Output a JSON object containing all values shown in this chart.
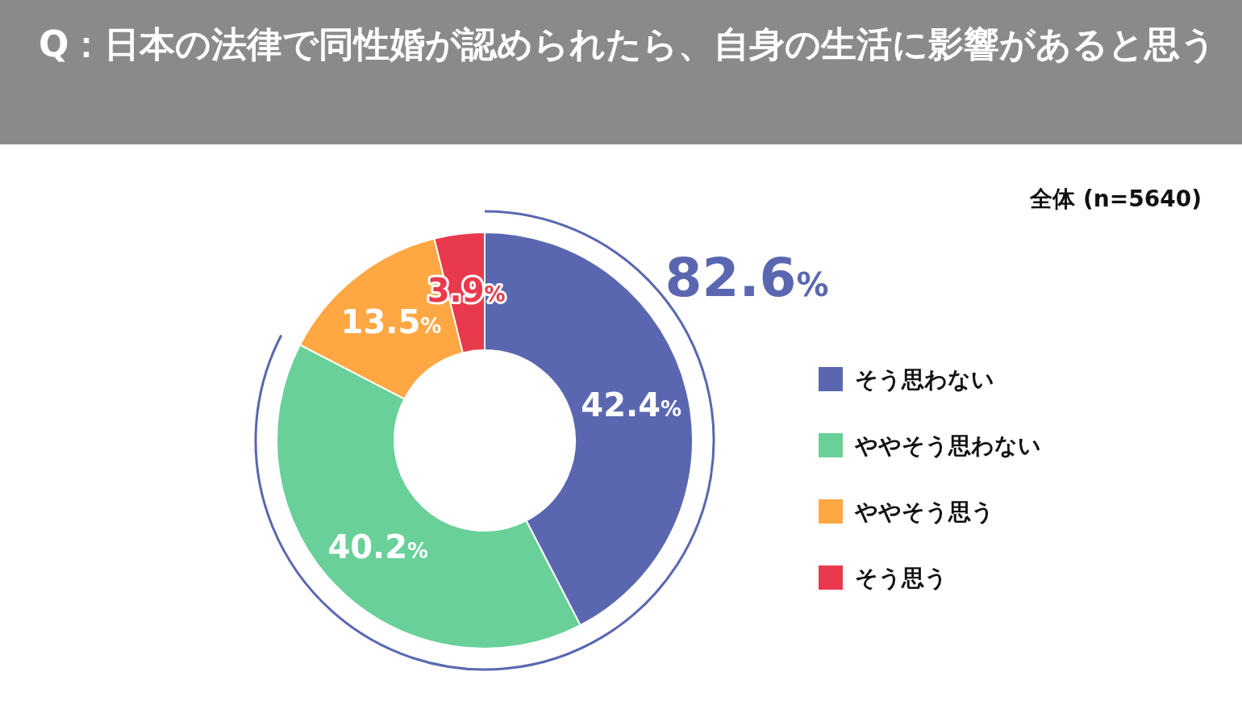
{
  "chart_data": {
    "type": "donut",
    "title": "Q：日本の法律で同性婚が認められたら、自身の生活に影響があると思う",
    "subtitle": "全体 (n=5640)",
    "categories": [
      "そう思わない",
      "ややそう思わない",
      "ややそう思う",
      "そう思う"
    ],
    "values": [
      42.4,
      40.2,
      13.5,
      3.9
    ],
    "colors": [
      "#5a67b0",
      "#68d098",
      "#ffa843",
      "#e93a4d"
    ],
    "value_labels": [
      "42.4%",
      "40.2%",
      "13.5%",
      "3.9%"
    ],
    "annotations": [
      "82.6%"
    ],
    "legend": "right"
  }
}
